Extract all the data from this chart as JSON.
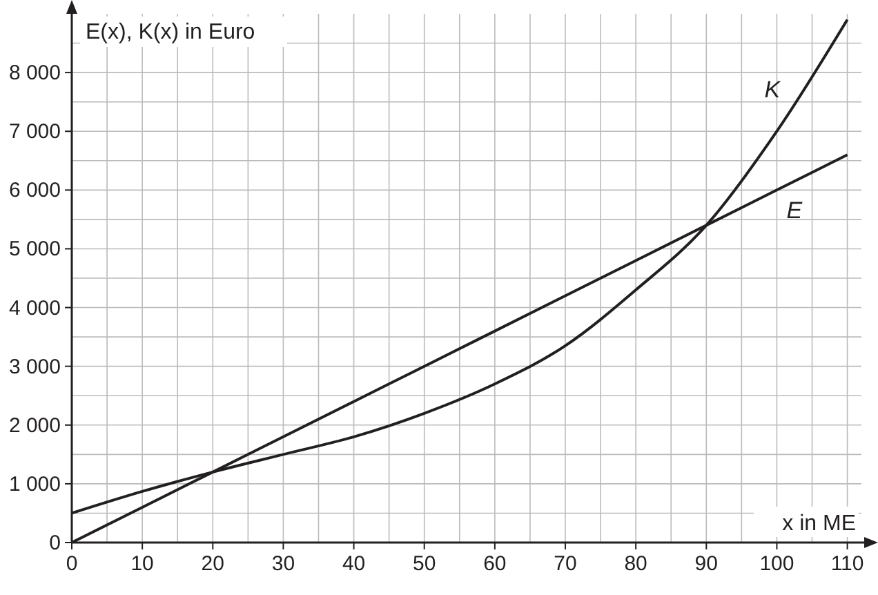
{
  "chart_data": {
    "type": "line",
    "xlabel": "x in ME",
    "ylabel": "E(x), K(x) in Euro",
    "x": [
      0,
      10,
      20,
      30,
      40,
      50,
      60,
      70,
      80,
      90,
      100,
      110
    ],
    "series": [
      {
        "name": "K",
        "color": "#231f20",
        "values": [
          500,
          870,
          1200,
          1500,
          1800,
          2200,
          2700,
          3350,
          4300,
          5400,
          7000,
          8900
        ]
      },
      {
        "name": "E",
        "color": "#231f20",
        "values": [
          0,
          600,
          1200,
          1800,
          2400,
          3000,
          3600,
          4200,
          4800,
          5400,
          6000,
          6600
        ]
      }
    ],
    "xlim": [
      0,
      112
    ],
    "ylim": [
      0,
      9000
    ],
    "xticks": [
      0,
      {
        "value": 5,
        "label": null
      },
      10,
      {
        "value": 15,
        "label": null
      },
      20,
      {
        "value": 25,
        "label": null
      },
      30,
      {
        "value": 35,
        "label": null
      },
      40,
      {
        "value": 45,
        "label": null
      },
      50,
      {
        "value": 55,
        "label": null
      },
      60,
      {
        "value": 65,
        "label": null
      },
      70,
      {
        "value": 75,
        "label": null
      },
      80,
      {
        "value": 85,
        "label": null
      },
      90,
      {
        "value": 95,
        "label": null
      },
      100,
      {
        "value": 105,
        "label": null
      },
      110
    ],
    "yticks": [
      0,
      {
        "value": 500,
        "label": null
      },
      {
        "value": 1000,
        "label": "1 000"
      },
      {
        "value": 1500,
        "label": null
      },
      {
        "value": 2000,
        "label": "2 000"
      },
      {
        "value": 2500,
        "label": null
      },
      {
        "value": 3000,
        "label": "3 000"
      },
      {
        "value": 3500,
        "label": null
      },
      {
        "value": 4000,
        "label": "4 000"
      },
      {
        "value": 4500,
        "label": null
      },
      {
        "value": 5000,
        "label": "5 000"
      },
      {
        "value": 5500,
        "label": null
      },
      {
        "value": 6000,
        "label": "6 000"
      },
      {
        "value": 6500,
        "label": null
      },
      {
        "value": 7000,
        "label": "7 000"
      },
      {
        "value": 7500,
        "label": null
      },
      {
        "value": 8000,
        "label": "8 000"
      },
      {
        "value": 8500,
        "label": null
      }
    ],
    "grid": true,
    "marker": "none",
    "line_style": "solid",
    "legend": false
  }
}
